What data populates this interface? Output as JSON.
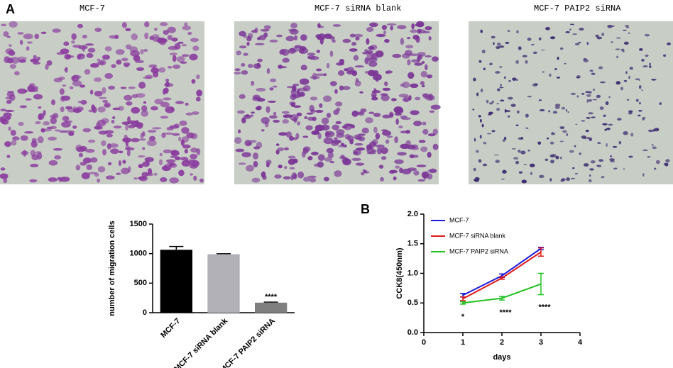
{
  "figure": {
    "panel_a": "A",
    "panel_b": "B",
    "image_captions": [
      "MCF-7",
      "MCF-7 siRNA blank",
      "MCF-7 PAIP2 siRNA"
    ]
  },
  "chart_data": [
    {
      "type": "bar",
      "ylabel": "number of migration cells",
      "categories": [
        "MCF-7",
        "MCF-7 siRNA blank",
        "MCF-7 PAIP2 siRNA"
      ],
      "values": [
        1065,
        990,
        170
      ],
      "errors": [
        55,
        8,
        8
      ],
      "colors": [
        "#000000",
        "#b3b1b8",
        "#7f7f7f"
      ],
      "significance": [
        null,
        null,
        "****"
      ],
      "ylim": [
        0,
        1500
      ],
      "yticks": [
        0,
        500,
        1000,
        1500
      ]
    },
    {
      "type": "line",
      "xlabel": "days",
      "ylabel": "CCK8(450nm)",
      "x": [
        1,
        2,
        3
      ],
      "series": [
        {
          "name": "MCF-7",
          "color": "#1a1adc",
          "values": [
            0.63,
            0.96,
            1.42
          ],
          "errors": [
            0.03,
            0.03,
            0.02
          ]
        },
        {
          "name": "MCF-7 siRNA blank",
          "color": "#e01818",
          "values": [
            0.57,
            0.92,
            1.36
          ],
          "errors": [
            0.03,
            0.02,
            0.07
          ]
        },
        {
          "name": "MCF-7 PAIP2 siRNA",
          "color": "#20c020",
          "values": [
            0.5,
            0.58,
            0.82
          ],
          "errors": [
            0.02,
            0.03,
            0.18
          ]
        }
      ],
      "significance": [
        "*",
        "****",
        "****"
      ],
      "xlim": [
        0,
        4
      ],
      "xticks": [
        0,
        1,
        2,
        3,
        4
      ],
      "ylim": [
        0,
        2.0
      ],
      "yticks": [
        {
          "value": 0,
          "label": "0.0"
        },
        0.5,
        {
          "value": 1,
          "label": "1.0"
        },
        1.5,
        {
          "value": 2,
          "label": "2.0"
        }
      ]
    }
  ]
}
